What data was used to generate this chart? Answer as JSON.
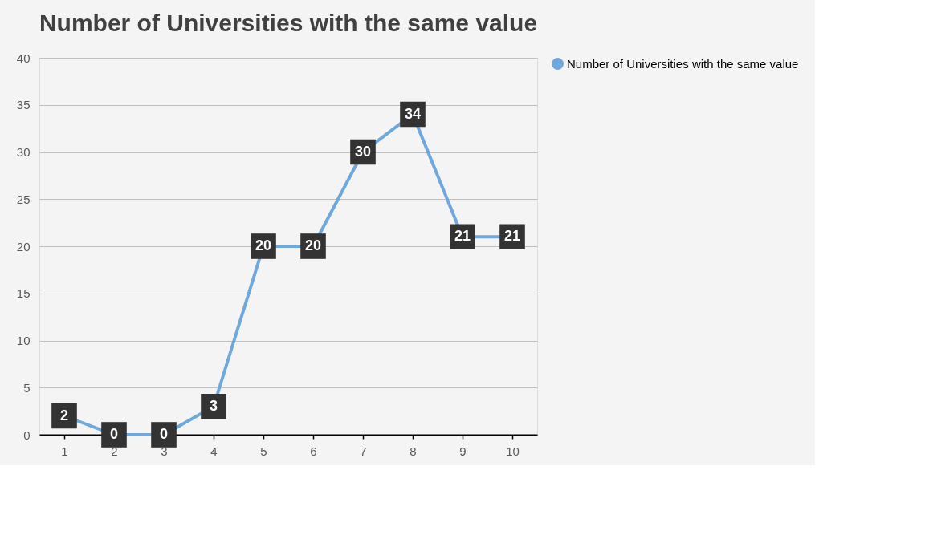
{
  "chart_data": {
    "type": "line",
    "title": "Number of Universities with the same value",
    "categories": [
      "1",
      "2",
      "3",
      "4",
      "5",
      "6",
      "7",
      "8",
      "9",
      "10"
    ],
    "series": [
      {
        "name": "Number of Universities with the same value",
        "color": "#6fa8dc",
        "values": [
          2,
          0,
          0,
          3,
          20,
          20,
          30,
          34,
          21,
          21
        ]
      }
    ],
    "ylim": [
      0,
      40
    ],
    "yticks": [
      0,
      5,
      10,
      15,
      20,
      25,
      30,
      35,
      40
    ],
    "grid": "y",
    "legend": "right",
    "marker": "circle",
    "line_style": "solid",
    "data_labels": true
  }
}
